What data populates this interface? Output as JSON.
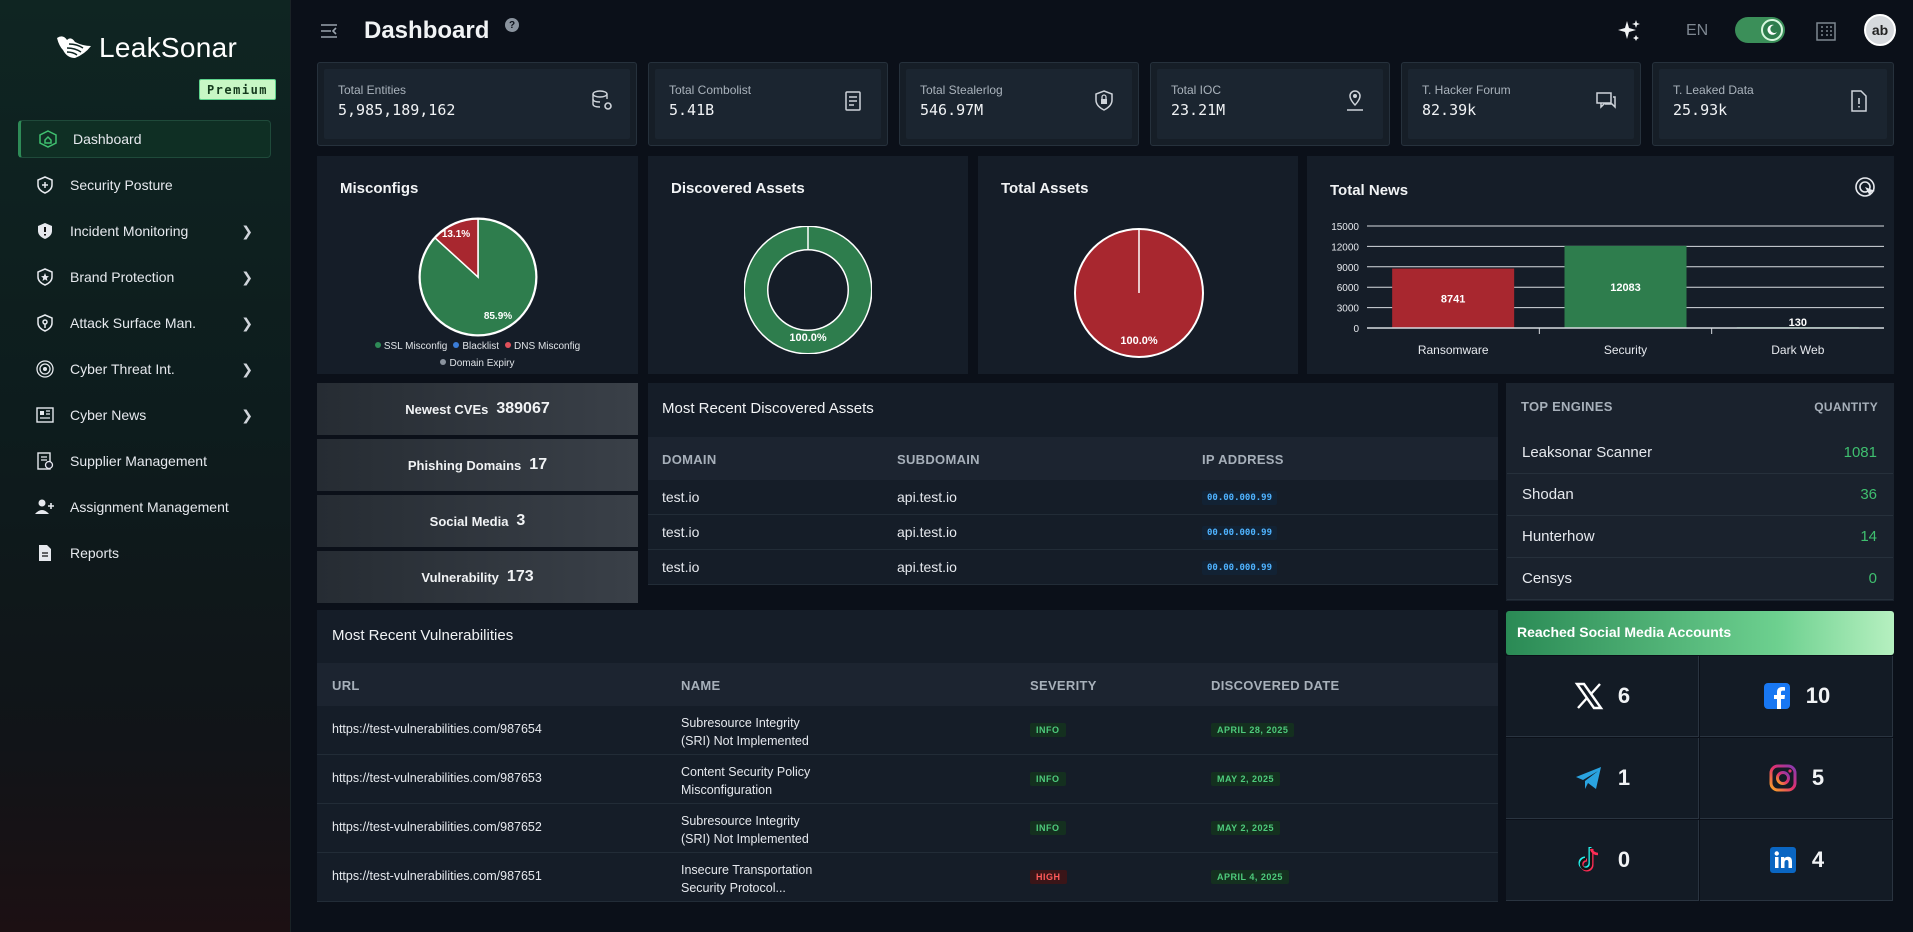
{
  "brand": {
    "name": "LeakSonar",
    "plan": "Premium"
  },
  "nav": [
    {
      "label": "Dashboard",
      "icon": "home-icon",
      "chevron": false,
      "active": true
    },
    {
      "label": "Security Posture",
      "icon": "security-posture-icon",
      "chevron": false
    },
    {
      "label": "Incident Monitoring",
      "icon": "alert-shield-icon",
      "chevron": true
    },
    {
      "label": "Brand Protection",
      "icon": "star-shield-icon",
      "chevron": true
    },
    {
      "label": "Attack Surface Man.",
      "icon": "target-shield-icon",
      "chevron": true
    },
    {
      "label": "Cyber Threat Int.",
      "icon": "radar-icon",
      "chevron": true
    },
    {
      "label": "Cyber News",
      "icon": "newspaper-icon",
      "chevron": true
    },
    {
      "label": "Supplier Management",
      "icon": "supplier-icon",
      "chevron": false
    },
    {
      "label": "Assignment Management",
      "icon": "user-plus-icon",
      "chevron": false
    },
    {
      "label": "Reports",
      "icon": "report-icon",
      "chevron": false
    }
  ],
  "header": {
    "title": "Dashboard",
    "help": "?",
    "lang": "EN",
    "avatar": "ab"
  },
  "stats": [
    {
      "label": "Total Entities",
      "value": "5,985,189,162",
      "icon": "database-gear-icon"
    },
    {
      "label": "Total Combolist",
      "value": "5.41B",
      "icon": "document-list-icon"
    },
    {
      "label": "Total Stealerlog",
      "value": "546.97M",
      "icon": "shield-lock-icon"
    },
    {
      "label": "Total IOC",
      "value": "23.21M",
      "icon": "map-pin-icon"
    },
    {
      "label": "T. Hacker Forum",
      "value": "82.39k",
      "icon": "chat-icon"
    },
    {
      "label": "T. Leaked Data",
      "value": "25.93k",
      "icon": "file-alert-icon"
    }
  ],
  "misconfigs": {
    "title": "Misconfigs",
    "legend": [
      "SSL Misconfig",
      "Blacklist",
      "DNS Misconfig",
      "Domain Expiry"
    ],
    "legend_colors": [
      "#2e8b57",
      "#3b7dd8",
      "#e0505a",
      "#8a939e"
    ],
    "slices": [
      85.9,
      13.1
    ],
    "labels": [
      "85.9%",
      "13.1%"
    ]
  },
  "discovered_assets": {
    "title": "Discovered Assets",
    "value": 100.0,
    "label": "100.0%"
  },
  "total_assets": {
    "title": "Total Assets",
    "value": 100.0,
    "label": "100.0%"
  },
  "chart_data": {
    "type": "bar",
    "title": "Total News",
    "categories": [
      "Ransomware",
      "Security",
      "Dark Web"
    ],
    "values": [
      8741,
      12083,
      130
    ],
    "colors": [
      "#a8272f",
      "#2e7d4d",
      "#2e7d4d"
    ],
    "yticks": [
      "15000",
      "12000",
      "9000",
      "6000",
      "3000",
      "0"
    ],
    "ylim": [
      0,
      15000
    ],
    "grid": true
  },
  "quick": [
    {
      "label": "Newest CVEs",
      "value": "389067"
    },
    {
      "label": "Phishing Domains",
      "value": "17"
    },
    {
      "label": "Social Media",
      "value": "3"
    },
    {
      "label": "Vulnerability",
      "value": "173"
    }
  ],
  "assets_table": {
    "title": "Most Recent Discovered Assets",
    "headers": [
      "DOMAIN",
      "SUBDOMAIN",
      "IP ADDRESS"
    ],
    "rows": [
      [
        "test.io",
        "api.test.io",
        "00.00.000.99"
      ],
      [
        "test.io",
        "api.test.io",
        "00.00.000.99"
      ],
      [
        "test.io",
        "api.test.io",
        "00.00.000.99"
      ]
    ]
  },
  "vuln_table": {
    "title": "Most Recent Vulnerabilities",
    "headers": [
      "URL",
      "NAME",
      "SEVERITY",
      "DISCOVERED DATE"
    ],
    "rows": [
      {
        "url": "https://test-vulnerabilities.com/987654",
        "name1": "Subresource Integrity",
        "name2": "(SRI) Not Implemented",
        "sev": "INFO",
        "date": "APRIL 28, 2025"
      },
      {
        "url": "https://test-vulnerabilities.com/987653",
        "name1": "Content Security Policy",
        "name2": "Misconfiguration",
        "sev": "INFO",
        "date": "MAY 2, 2025"
      },
      {
        "url": "https://test-vulnerabilities.com/987652",
        "name1": "Subresource Integrity",
        "name2": "(SRI) Not Implemented",
        "sev": "INFO",
        "date": "MAY 2, 2025"
      },
      {
        "url": "https://test-vulnerabilities.com/987651",
        "name1": "Insecure Transportation",
        "name2": "Security Protocol...",
        "sev": "HIGH",
        "date": "APRIL 4, 2025"
      }
    ]
  },
  "engines": {
    "headers": [
      "TOP ENGINES",
      "QUANTITY"
    ],
    "rows": [
      [
        "Leaksonar Scanner",
        "1081"
      ],
      [
        "Shodan",
        "36"
      ],
      [
        "Hunterhow",
        "14"
      ],
      [
        "Censys",
        "0"
      ]
    ]
  },
  "social": {
    "title": "Reached Social Media Accounts",
    "items": [
      {
        "icon": "x-twitter-icon",
        "value": "6"
      },
      {
        "icon": "facebook-icon",
        "value": "10"
      },
      {
        "icon": "telegram-icon",
        "value": "1"
      },
      {
        "icon": "instagram-icon",
        "value": "5"
      },
      {
        "icon": "tiktok-icon",
        "value": "0"
      },
      {
        "icon": "linkedin-icon",
        "value": "4"
      }
    ]
  }
}
